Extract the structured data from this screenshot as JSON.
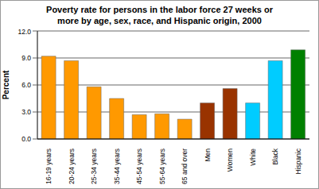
{
  "chart_data": {
    "type": "bar",
    "title": "Poverty rate for persons in the labor force 27 weeks or more by age, sex, race, and Hispanic origin, 2000",
    "y_label": "Percent",
    "categories": [
      "16-19 years",
      "20-24 years",
      "25-34 years",
      "35-44 years",
      "45-54 years",
      "55-64 years",
      "65 and over",
      "Men",
      "Women",
      "White",
      "Black",
      "Hispanic"
    ],
    "values": [
      9.2,
      8.7,
      5.8,
      4.5,
      2.7,
      2.8,
      2.2,
      4.0,
      5.6,
      4.0,
      8.7,
      9.9
    ],
    "colors": [
      "#ff9900",
      "#ff9900",
      "#ff9900",
      "#ff9900",
      "#ff9900",
      "#ff9900",
      "#ff9900",
      "#993300",
      "#993300",
      "#00ccff",
      "#00ccff",
      "#008000"
    ],
    "ylim": [
      0,
      12
    ],
    "yticks": [
      {
        "value": 0,
        "label": "0.0"
      },
      {
        "value": 3,
        "label": "3.0"
      },
      {
        "value": 6,
        "label": "6.0"
      },
      {
        "value": 9,
        "label": "9.0"
      },
      {
        "value": 12,
        "label": "12.0"
      }
    ],
    "grid": true
  }
}
